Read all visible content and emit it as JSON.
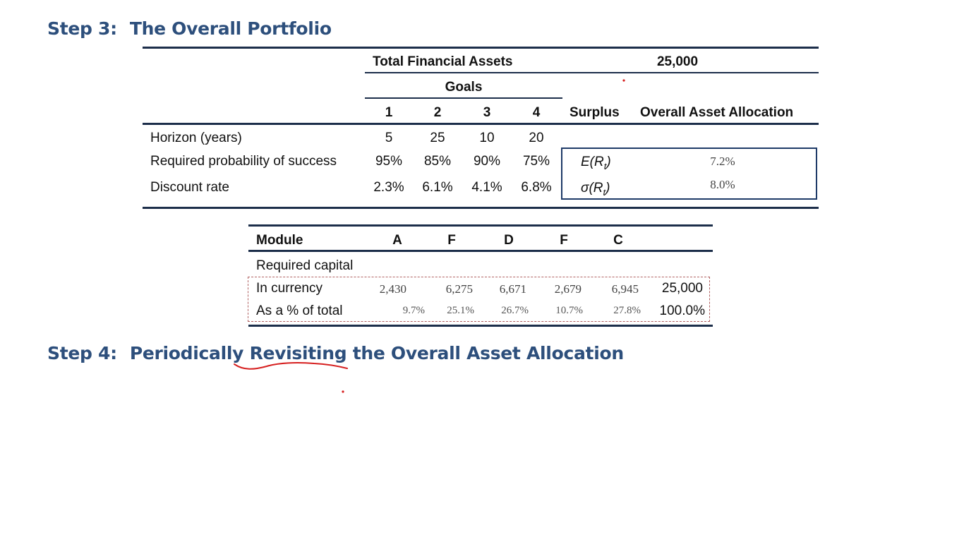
{
  "step3": {
    "num": "Step 3:",
    "title": "The Overall Portfolio"
  },
  "step4": {
    "num": "Step 4:",
    "title_pre": "Periodically",
    "title_underlined": "Revisiting",
    "title_post": "the Overall Asset Allocation"
  },
  "top_table": {
    "total_label": "Total Financial Assets",
    "total_value": "25,000",
    "goals_label": "Goals",
    "goal_numbers": [
      "1",
      "2",
      "3",
      "4"
    ],
    "surplus_label": "Surplus",
    "overall_label": "Overall Asset Allocation",
    "rows": [
      {
        "label": "Horizon (years)",
        "values": [
          "5",
          "25",
          "10",
          "20"
        ]
      },
      {
        "label": "Required probability of success",
        "values": [
          "95%",
          "85%",
          "90%",
          "75%"
        ]
      },
      {
        "label": "Discount rate",
        "values": [
          "2.3%",
          "6.1%",
          "4.1%",
          "6.8%"
        ]
      }
    ],
    "stats": [
      {
        "label": "E(R",
        "sub": "t",
        "close": ")",
        "value": "7.2%"
      },
      {
        "label": "σ(R",
        "sub": "t",
        "close": ")",
        "value": "8.0%"
      }
    ]
  },
  "module_table": {
    "header_label": "Module",
    "modules": [
      "A",
      "F",
      "D",
      "F",
      "C"
    ],
    "required_capital_label": "Required capital",
    "currency_label": "In currency",
    "currency_values": [
      "2,430",
      "6,275",
      "6,671",
      "2,679",
      "6,945"
    ],
    "currency_total": "25,000",
    "percent_label": "As a % of total",
    "percent_values": [
      "9.7%",
      "25.1%",
      "26.7%",
      "10.7%",
      "27.8%"
    ],
    "percent_total": "100.0%"
  },
  "annotation_color": "#d62020",
  "heading_color": "#2d4f7c"
}
